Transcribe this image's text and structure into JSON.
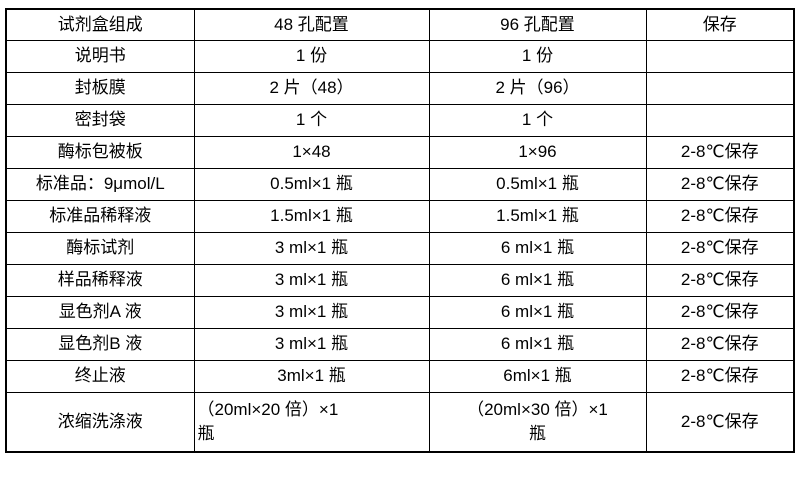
{
  "table": {
    "columns": [
      "试剂盒组成",
      "48 孔配置",
      "96 孔配置",
      "保存"
    ],
    "rows": [
      {
        "cells": [
          "说明书",
          "1 份",
          "1 份",
          ""
        ]
      },
      {
        "cells": [
          "封板膜",
          "2 片（48）",
          "2 片（96）",
          ""
        ]
      },
      {
        "cells": [
          "密封袋",
          "1 个",
          "1 个",
          ""
        ]
      },
      {
        "cells": [
          "酶标包被板",
          "1×48",
          "1×96",
          "2-8℃保存"
        ]
      },
      {
        "cells": [
          "标准品：9μmol/L",
          "0.5ml×1 瓶",
          "0.5ml×1 瓶",
          "2-8℃保存"
        ]
      },
      {
        "cells": [
          "标准品稀释液",
          "1.5ml×1 瓶",
          "1.5ml×1 瓶",
          "2-8℃保存"
        ]
      },
      {
        "cells": [
          "酶标试剂",
          "3 ml×1 瓶",
          "6 ml×1 瓶",
          "2-8℃保存"
        ]
      },
      {
        "cells": [
          "样品稀释液",
          "3 ml×1 瓶",
          "6 ml×1 瓶",
          "2-8℃保存"
        ]
      },
      {
        "cells": [
          "显色剂A 液",
          "3 ml×1 瓶",
          "6 ml×1 瓶",
          "2-8℃保存"
        ]
      },
      {
        "cells": [
          "显色剂B 液",
          "3 ml×1 瓶",
          "6 ml×1 瓶",
          "2-8℃保存"
        ]
      },
      {
        "cells": [
          "终止液",
          "3ml×1 瓶",
          "6ml×1 瓶",
          "2-8℃保存"
        ]
      },
      {
        "cells": [
          "浓缩洗涤液",
          "（20ml×20 倍）×1\n瓶",
          "（20ml×30 倍）×1\n瓶",
          "2-8℃保存"
        ]
      }
    ],
    "colors": {
      "border": "#000000",
      "text": "#000000",
      "background": "#ffffff"
    }
  }
}
